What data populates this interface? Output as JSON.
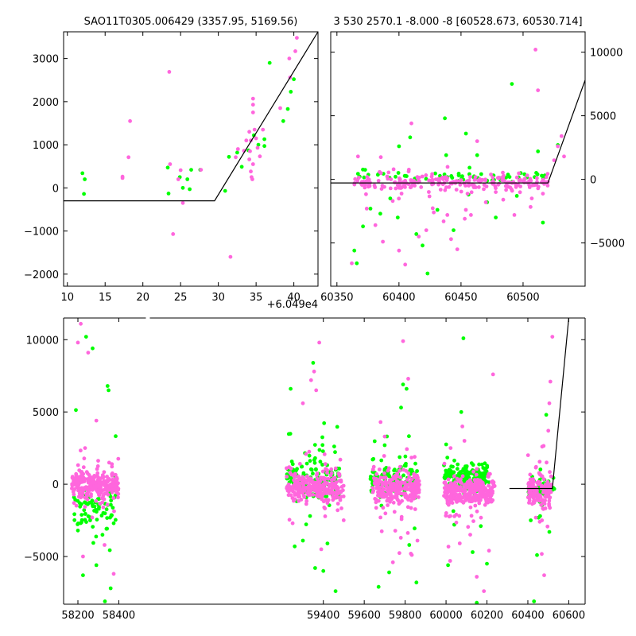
{
  "figure": {
    "background": "#ffffff"
  },
  "chart_data": [
    {
      "id": "top-left",
      "type": "scatter",
      "title": "SAO11T0305.006429 (3357.95, 5169.56)",
      "offset_label": "+6.049e4",
      "xlim": [
        9.5,
        43.2
      ],
      "ylim": [
        -2280,
        3620
      ],
      "xticks": [
        10,
        15,
        20,
        25,
        30,
        35,
        40
      ],
      "yticks": [
        -2000,
        -1000,
        0,
        1000,
        2000,
        3000
      ],
      "ytick_labels": [
        "−2000",
        "−1000",
        "0",
        "1000",
        "2000",
        "3000"
      ],
      "model_line": {
        "x": [
          9.5,
          29.5,
          43.2
        ],
        "y": [
          -300,
          -300,
          3620
        ]
      },
      "series": [
        {
          "color": "#00ff00",
          "points": [
            [
              12,
              340
            ],
            [
              12.3,
              200
            ],
            [
              12.2,
              -140
            ],
            [
              23.3,
              470
            ],
            [
              23.4,
              -130
            ],
            [
              24.9,
              250
            ],
            [
              25.3,
              0
            ],
            [
              25.9,
              200
            ],
            [
              26.4,
              420
            ],
            [
              26.2,
              -30
            ],
            [
              27.6,
              420
            ],
            [
              30.9,
              -70
            ],
            [
              31.4,
              720
            ],
            [
              32.5,
              820
            ],
            [
              33.1,
              490
            ],
            [
              34,
              870
            ],
            [
              34.7,
              1220
            ],
            [
              35.3,
              1000
            ],
            [
              36.1,
              970
            ],
            [
              36.8,
              2900
            ],
            [
              36.1,
              1130
            ],
            [
              38.6,
              1550
            ],
            [
              39.6,
              2230
            ],
            [
              40,
              2520
            ],
            [
              39.2,
              1830
            ]
          ]
        },
        {
          "color": "#ff66dd",
          "points": [
            [
              17.3,
              230
            ],
            [
              17.3,
              260
            ],
            [
              18.1,
              710
            ],
            [
              18.3,
              1550
            ],
            [
              23.5,
              2690
            ],
            [
              23.6,
              550
            ],
            [
              24,
              -1070
            ],
            [
              24.7,
              200
            ],
            [
              25,
              410
            ],
            [
              25.3,
              -350
            ],
            [
              27.7,
              420
            ],
            [
              31.6,
              -1600
            ],
            [
              32.3,
              710
            ],
            [
              32.6,
              900
            ],
            [
              33.4,
              860
            ],
            [
              33.7,
              1100
            ],
            [
              34.1,
              1300
            ],
            [
              34.3,
              1100
            ],
            [
              34.1,
              660
            ],
            [
              34.3,
              380
            ],
            [
              34.4,
              250
            ],
            [
              34.5,
              200
            ],
            [
              34.6,
              1750
            ],
            [
              34.6,
              1930
            ],
            [
              34.6,
              2070
            ],
            [
              34.8,
              1350
            ],
            [
              35,
              1150
            ],
            [
              35.2,
              930
            ],
            [
              35.5,
              730
            ],
            [
              35.9,
              1350
            ],
            [
              34.2,
              850
            ],
            [
              34.6,
              550
            ],
            [
              38.2,
              1850
            ],
            [
              39.4,
              3000
            ],
            [
              39.5,
              2560
            ],
            [
              40.2,
              3170
            ],
            [
              40.4,
              3480
            ]
          ]
        }
      ]
    },
    {
      "id": "top-right",
      "type": "scatter",
      "title": "3 530 2570.1 -8.000 -8 [60528.673, 60530.714]",
      "xlim": [
        60345,
        60550
      ],
      "ylim": [
        -8400,
        11600
      ],
      "xticks": [
        60350,
        60400,
        60450,
        60500
      ],
      "yticks": [
        -5000,
        0,
        5000,
        10000
      ],
      "ytick_labels": [
        "−5000",
        "0",
        "5000",
        "10000"
      ],
      "model_line": {
        "x": [
          60345,
          60520,
          60550
        ],
        "y": [
          -280,
          -280,
          7800
        ]
      },
      "series": [
        {
          "color": "#00ff00",
          "seed": 11,
          "bands": [
            [
              60362,
              60518,
              250,
              170,
              65
            ]
          ],
          "outliers": [
            [
              60364,
              -5600
            ],
            [
              60366,
              -6600
            ],
            [
              60371,
              -3700
            ],
            [
              60377,
              -2300
            ],
            [
              60385,
              -2700
            ],
            [
              60393,
              -1500
            ],
            [
              60399,
              -3000
            ],
            [
              60400,
              2600
            ],
            [
              60409,
              3300
            ],
            [
              60414,
              -4300
            ],
            [
              60419,
              -5200
            ],
            [
              60423,
              -7400
            ],
            [
              60431,
              -2400
            ],
            [
              60437,
              4800
            ],
            [
              60438,
              1900
            ],
            [
              60444,
              -4000
            ],
            [
              60454,
              3600
            ],
            [
              60456,
              -1200
            ],
            [
              60463,
              1900
            ],
            [
              60471,
              -1800
            ],
            [
              60478,
              -3000
            ],
            [
              60491,
              7500
            ],
            [
              60495,
              -1300
            ],
            [
              60512,
              2200
            ],
            [
              60516,
              -3400
            ],
            [
              60528,
              2700
            ]
          ]
        },
        {
          "color": "#ff66dd",
          "seed": 23,
          "bands": [
            [
              60364,
              60520,
              -250,
              300,
              230
            ]
          ],
          "outliers": [
            [
              60362,
              -6600
            ],
            [
              60367,
              1800
            ],
            [
              60374,
              -2300
            ],
            [
              60381,
              -3600
            ],
            [
              60387,
              -4900
            ],
            [
              60395,
              -1700
            ],
            [
              60400,
              -5600
            ],
            [
              60405,
              -6700
            ],
            [
              60410,
              4400
            ],
            [
              60416,
              -4500
            ],
            [
              60422,
              -4000
            ],
            [
              60428,
              -2600
            ],
            [
              60436,
              -3300
            ],
            [
              60439,
              -2800
            ],
            [
              60442,
              -4700
            ],
            [
              60447,
              -5500
            ],
            [
              60453,
              -3100
            ],
            [
              60458,
              -2800
            ],
            [
              60463,
              3000
            ],
            [
              60470,
              -1800
            ],
            [
              60478,
              -1000
            ],
            [
              60484,
              -1600
            ],
            [
              60493,
              -2800
            ],
            [
              60507,
              -1500
            ],
            [
              60510,
              10200
            ],
            [
              60512,
              7000
            ],
            [
              60520,
              -200
            ],
            [
              60525,
              1500
            ],
            [
              60528,
              2600
            ],
            [
              60531,
              3400
            ],
            [
              60533,
              1800
            ]
          ]
        }
      ]
    },
    {
      "id": "bottom",
      "type": "scatter",
      "xlim": [
        58130,
        60680
      ],
      "ylim": [
        -8300,
        11500
      ],
      "xticks": [
        58200,
        58400,
        59400,
        59600,
        59800,
        60000,
        60200,
        60400,
        60600
      ],
      "yticks": [
        -5000,
        0,
        5000,
        10000
      ],
      "ytick_labels": [
        "−5000",
        "0",
        "5000",
        "10000"
      ],
      "axis_break": 58540,
      "model_line": {
        "x": [
          60310,
          60520,
          60600
        ],
        "y": [
          -300,
          -300,
          11500
        ]
      },
      "series": [
        {
          "color": "#00ff00",
          "seed": 7,
          "bands": [
            [
              58180,
              58390,
              -1500,
              900,
              80
            ],
            [
              59220,
              59480,
              400,
              700,
              140
            ],
            [
              59630,
              59860,
              300,
              500,
              130
            ],
            [
              59990,
              60210,
              500,
              450,
              170
            ],
            [
              60400,
              60530,
              -300,
              350,
              60
            ]
          ],
          "outliers": [
            [
              58200,
              -3200
            ],
            [
              58225,
              -6300
            ],
            [
              58240,
              10200
            ],
            [
              58260,
              -2500
            ],
            [
              58272,
              9400
            ],
            [
              58290,
              -5600
            ],
            [
              58300,
              -1400
            ],
            [
              58320,
              -3500
            ],
            [
              58345,
              6800
            ],
            [
              58350,
              6500
            ],
            [
              58332,
              -8100
            ],
            [
              58360,
              -7200
            ],
            [
              58375,
              -2700
            ],
            [
              59240,
              6600
            ],
            [
              59260,
              -4300
            ],
            [
              59300,
              -3900
            ],
            [
              59335,
              -2200
            ],
            [
              59350,
              8400
            ],
            [
              59360,
              -5800
            ],
            [
              59400,
              -6000
            ],
            [
              59420,
              -4100
            ],
            [
              59460,
              -7400
            ],
            [
              59670,
              -7100
            ],
            [
              59700,
              2700
            ],
            [
              59722,
              -6100
            ],
            [
              59780,
              5300
            ],
            [
              59790,
              6900
            ],
            [
              59807,
              6600
            ],
            [
              59820,
              -4200
            ],
            [
              59855,
              -6800
            ],
            [
              60010,
              -5600
            ],
            [
              60040,
              -2800
            ],
            [
              60085,
              10100
            ],
            [
              60130,
              -4700
            ],
            [
              60150,
              -8200
            ],
            [
              60170,
              -2900
            ],
            [
              60200,
              -5500
            ],
            [
              60430,
              -8100
            ],
            [
              60445,
              -4900
            ],
            [
              60460,
              -2200
            ],
            [
              60490,
              4800
            ],
            [
              60505,
              -3300
            ]
          ]
        },
        {
          "color": "#ff66dd",
          "seed": 19,
          "bands": [
            [
              58170,
              58400,
              -50,
              450,
              260
            ],
            [
              59220,
              59500,
              -200,
              500,
              280
            ],
            [
              59640,
              59870,
              -300,
              500,
              260
            ],
            [
              59990,
              60240,
              -500,
              450,
              300
            ],
            [
              60400,
              60515,
              -400,
              450,
              150
            ]
          ],
          "outliers": [
            [
              58200,
              9800
            ],
            [
              58214,
              11100
            ],
            [
              58250,
              9100
            ],
            [
              58235,
              2500
            ],
            [
              58290,
              4400
            ],
            [
              58225,
              -5000
            ],
            [
              58270,
              -2300
            ],
            [
              58330,
              -4200
            ],
            [
              58375,
              -6200
            ],
            [
              59250,
              -2700
            ],
            [
              59300,
              5600
            ],
            [
              59340,
              7200
            ],
            [
              59355,
              7800
            ],
            [
              59365,
              6500
            ],
            [
              59380,
              9800
            ],
            [
              59390,
              -4500
            ],
            [
              59420,
              -1300
            ],
            [
              59470,
              -1800
            ],
            [
              59680,
              4300
            ],
            [
              59700,
              3300
            ],
            [
              59740,
              -5400
            ],
            [
              59790,
              9900
            ],
            [
              59815,
              7300
            ],
            [
              59828,
              -4800
            ],
            [
              59860,
              -3900
            ],
            [
              60020,
              -5300
            ],
            [
              60050,
              -2100
            ],
            [
              60080,
              4000
            ],
            [
              60090,
              3000
            ],
            [
              60150,
              -6400
            ],
            [
              60185,
              -7400
            ],
            [
              60210,
              -4600
            ],
            [
              60230,
              7600
            ],
            [
              60440,
              1200
            ],
            [
              60470,
              2600
            ],
            [
              60480,
              -6300
            ],
            [
              60500,
              3700
            ],
            [
              60505,
              5600
            ],
            [
              60510,
              7100
            ],
            [
              60520,
              10200
            ]
          ]
        }
      ]
    }
  ]
}
